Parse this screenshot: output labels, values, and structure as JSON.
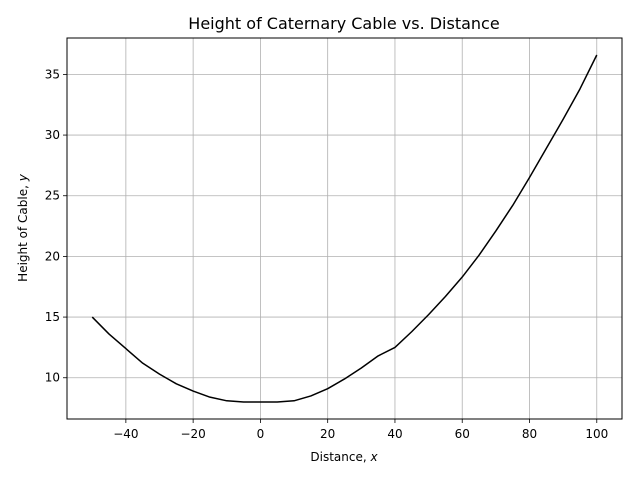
{
  "chart_data": {
    "type": "line",
    "title": "Height of Caternary Cable vs. Distance",
    "xlabel": "Distance, ",
    "xlabel_var": "x",
    "ylabel": "Height of Cable, ",
    "ylabel_var": "y",
    "xlim": [
      -57.5,
      107.5
    ],
    "ylim": [
      6.6,
      38.0
    ],
    "x_ticks": [
      -40,
      -20,
      0,
      20,
      40,
      60,
      80,
      100
    ],
    "x_tick_labels": [
      "−40",
      "−20",
      "0",
      "20",
      "40",
      "60",
      "80",
      "100"
    ],
    "y_ticks": [
      10,
      15,
      20,
      25,
      30,
      35
    ],
    "y_tick_labels": [
      "10",
      "15",
      "20",
      "25",
      "30",
      "35"
    ],
    "grid": true,
    "line_color": "#000000",
    "grid_color": "#b0b0b0",
    "series": [
      {
        "x": [
          -50,
          -45,
          -40,
          -35,
          -30,
          -25,
          -20,
          -15,
          -10,
          -5,
          0,
          5,
          10,
          15,
          20,
          25,
          30,
          35,
          40,
          45,
          50,
          55,
          60,
          65,
          70,
          75,
          80,
          85,
          90,
          95,
          100
        ],
        "y": [
          15.0,
          13.6,
          12.4,
          11.2,
          10.3,
          9.5,
          8.9,
          8.4,
          8.1,
          8.0,
          8.0,
          8.0,
          8.1,
          8.5,
          9.1,
          9.9,
          10.8,
          11.8,
          12.5,
          13.8,
          15.2,
          16.7,
          18.3,
          20.1,
          22.1,
          24.2,
          26.5,
          28.9,
          31.3,
          33.8,
          36.6
        ]
      }
    ]
  }
}
